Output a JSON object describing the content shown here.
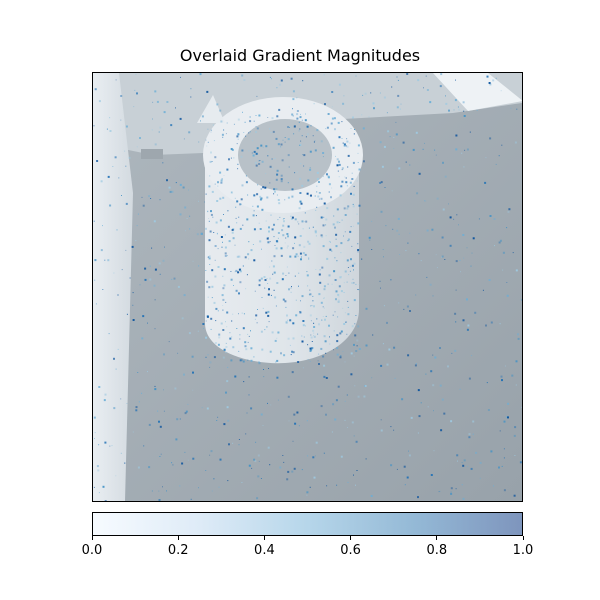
{
  "chart_data": {
    "type": "heatmap",
    "title": "Overlaid Gradient Magnitudes",
    "xlabel": "",
    "ylabel": "",
    "colorbar": {
      "colormap": "Blues",
      "range": [
        0.0,
        1.0
      ],
      "ticks": [
        0.0,
        0.2,
        0.4,
        0.6,
        0.8,
        1.0
      ],
      "tick_labels": [
        "0.0",
        "0.2",
        "0.4",
        "0.6",
        "0.8",
        "1.0"
      ]
    },
    "background_image": "grayscale photo of a cylindrical object on a floor"
  },
  "colors": {
    "background_gray": "#8f9aa2",
    "light_gray": "#e8ecf0",
    "gradient_dark": "#1f5f9a"
  }
}
